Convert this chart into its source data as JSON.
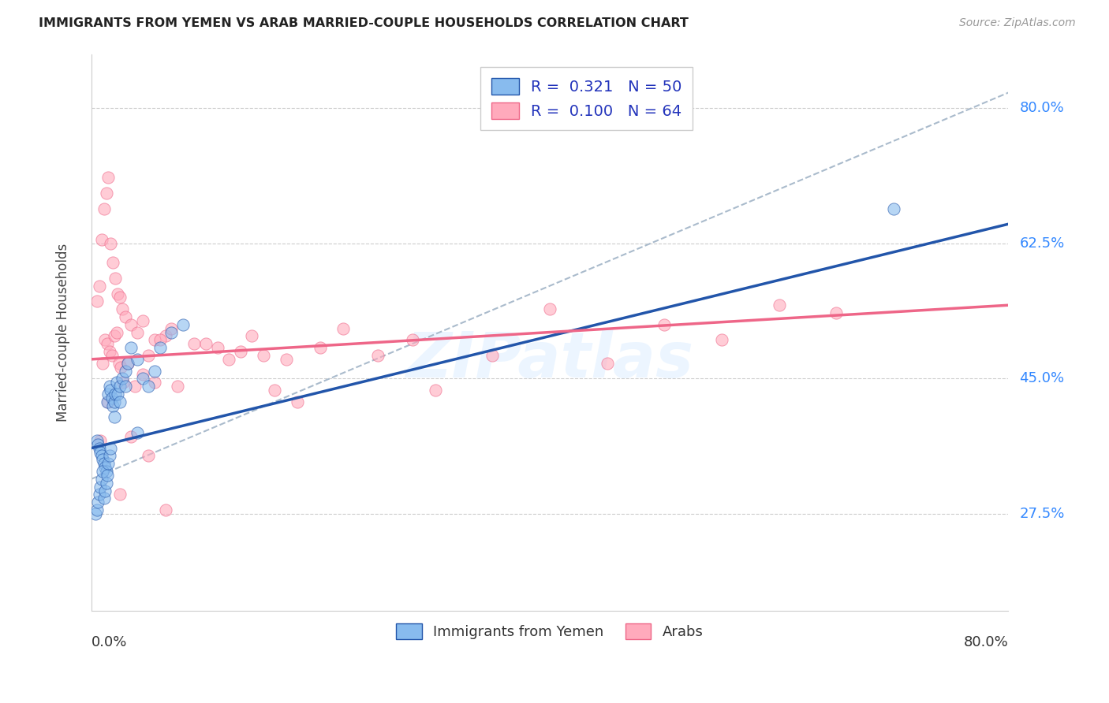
{
  "title": "IMMIGRANTS FROM YEMEN VS ARAB MARRIED-COUPLE HOUSEHOLDS CORRELATION CHART",
  "source": "Source: ZipAtlas.com",
  "ylabel": "Married-couple Households",
  "y_ticks": [
    27.5,
    45.0,
    62.5,
    80.0
  ],
  "xlim": [
    0.0,
    80.0
  ],
  "ylim": [
    15.0,
    87.0
  ],
  "ymin": 15.0,
  "ymax": 87.0,
  "blue_color": "#88BBEE",
  "pink_color": "#FFAABC",
  "blue_line_color": "#2255AA",
  "pink_line_color": "#EE6688",
  "grey_line_color": "#AABBCC",
  "watermark_text": "ZIPatlas",
  "legend_label1": "Immigrants from Yemen",
  "legend_label2": "Arabs",
  "blue_line_x0": 0,
  "blue_line_y0": 36.0,
  "blue_line_x1": 80,
  "blue_line_y1": 65.0,
  "pink_line_x0": 0,
  "pink_line_y0": 47.5,
  "pink_line_x1": 80,
  "pink_line_y1": 54.5,
  "grey_line_x0": 0,
  "grey_line_y0": 32.0,
  "grey_line_x1": 80,
  "grey_line_y1": 82.0,
  "blue_scatter_x": [
    0.5,
    0.6,
    0.7,
    0.8,
    0.9,
    1.0,
    1.1,
    1.2,
    1.3,
    1.4,
    1.5,
    1.6,
    1.7,
    1.8,
    1.9,
    2.0,
    2.1,
    2.2,
    2.3,
    2.5,
    2.7,
    3.0,
    3.2,
    3.5,
    4.0,
    4.5,
    5.0,
    5.5,
    6.0,
    7.0,
    8.0,
    0.4,
    0.5,
    0.6,
    0.7,
    0.8,
    0.9,
    1.0,
    1.1,
    1.2,
    1.3,
    1.4,
    1.5,
    1.6,
    1.7,
    2.0,
    2.5,
    3.0,
    4.0,
    70.0
  ],
  "blue_scatter_y": [
    37.0,
    36.5,
    36.0,
    35.5,
    35.0,
    34.5,
    34.0,
    33.5,
    33.0,
    42.0,
    43.0,
    44.0,
    43.5,
    42.5,
    41.5,
    42.0,
    43.0,
    44.5,
    43.0,
    44.0,
    45.0,
    46.0,
    47.0,
    49.0,
    47.5,
    45.0,
    44.0,
    46.0,
    49.0,
    51.0,
    52.0,
    27.5,
    28.0,
    29.0,
    30.0,
    31.0,
    32.0,
    33.0,
    29.5,
    30.5,
    31.5,
    32.5,
    34.0,
    35.0,
    36.0,
    40.0,
    42.0,
    44.0,
    38.0,
    67.0
  ],
  "pink_scatter_x": [
    0.5,
    0.7,
    0.9,
    1.1,
    1.3,
    1.5,
    1.7,
    1.9,
    2.1,
    2.3,
    2.5,
    2.7,
    3.0,
    3.5,
    4.0,
    4.5,
    5.0,
    5.5,
    6.5,
    7.0,
    9.0,
    11.0,
    13.0,
    15.0,
    17.0,
    20.0,
    25.0,
    30.0,
    40.0,
    50.0,
    60.0,
    1.0,
    1.2,
    1.4,
    1.6,
    1.8,
    2.0,
    2.2,
    2.4,
    2.6,
    2.8,
    3.2,
    3.8,
    4.5,
    5.5,
    6.0,
    7.5,
    10.0,
    12.0,
    14.0,
    16.0,
    18.0,
    22.0,
    28.0,
    35.0,
    45.0,
    55.0,
    65.0,
    0.8,
    1.5,
    2.5,
    3.5,
    5.0,
    6.5
  ],
  "pink_scatter_y": [
    55.0,
    57.0,
    63.0,
    67.0,
    69.0,
    71.0,
    62.5,
    60.0,
    58.0,
    56.0,
    55.5,
    54.0,
    53.0,
    52.0,
    51.0,
    52.5,
    48.0,
    50.0,
    50.5,
    51.5,
    49.5,
    49.0,
    48.5,
    48.0,
    47.5,
    49.0,
    48.0,
    43.5,
    54.0,
    52.0,
    54.5,
    47.0,
    50.0,
    49.5,
    48.5,
    48.0,
    50.5,
    51.0,
    47.0,
    46.5,
    44.5,
    47.0,
    44.0,
    45.5,
    44.5,
    50.0,
    44.0,
    49.5,
    47.5,
    50.5,
    43.5,
    42.0,
    51.5,
    50.0,
    48.0,
    47.0,
    50.0,
    53.5,
    37.0,
    42.0,
    30.0,
    37.5,
    35.0,
    28.0
  ]
}
